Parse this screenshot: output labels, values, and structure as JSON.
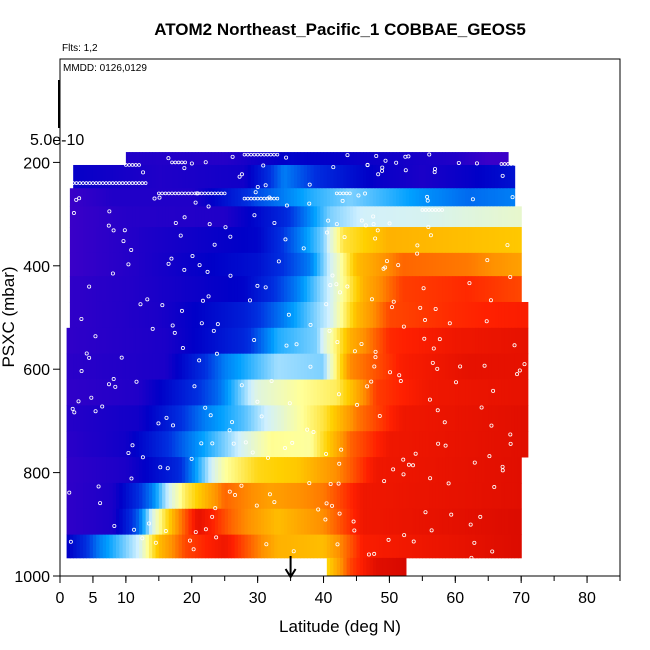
{
  "title": "ATOM2 Northeast_Pacific_1 COBBAE_GEOS5",
  "flights_label": "Flts: 1,2",
  "dates_label": "MMDD: 0126,0129",
  "scale_label": "5.0e-10",
  "chart_data": {
    "type": "heatmap",
    "title": "ATOM2 Northeast_Pacific_1 COBBAE_GEOS5",
    "xlabel": "Latitude (deg N)",
    "ylabel": "PSXC (mbar)",
    "xlim": [
      0,
      85
    ],
    "ylim": [
      1000,
      0
    ],
    "x_ticks": [
      0,
      5,
      10,
      20,
      30,
      40,
      50,
      60,
      70,
      80
    ],
    "y_ticks": [
      200,
      400,
      600,
      800,
      1000
    ],
    "flights": [
      1,
      2
    ],
    "dates": [
      "0126",
      "0129"
    ],
    "arrow_latitude": 35,
    "colorscale": [
      "#3a00c8",
      "#0000c8",
      "#0030e0",
      "#00a0ff",
      "#d0f0ff",
      "#ffff99",
      "#ffd000",
      "#ff9000",
      "#ff2000",
      "#c80000"
    ],
    "bands": [
      {
        "p_top": 180,
        "p_bot": 205,
        "lat_min": 10,
        "lat_max": 68,
        "stops": [
          [
            10,
            0.05
          ],
          [
            25,
            0.04
          ],
          [
            35,
            0.12
          ],
          [
            50,
            0.08
          ],
          [
            60,
            0.05
          ],
          [
            65,
            0.0
          ]
        ]
      },
      {
        "p_top": 205,
        "p_bot": 250,
        "lat_min": 2,
        "lat_max": 69,
        "stops": [
          [
            2,
            0.1
          ],
          [
            15,
            0.05
          ],
          [
            28,
            0.08
          ],
          [
            34,
            0.3
          ],
          [
            40,
            0.2
          ],
          [
            48,
            0.1
          ],
          [
            55,
            0.06
          ],
          [
            62,
            0.1
          ],
          [
            69,
            0.15
          ]
        ]
      },
      {
        "p_top": 250,
        "p_bot": 285,
        "lat_min": 1.5,
        "lat_max": 69,
        "stops": [
          [
            1.5,
            0.0
          ],
          [
            8,
            0.05
          ],
          [
            20,
            0.05
          ],
          [
            30,
            0.25
          ],
          [
            38,
            0.35
          ],
          [
            44,
            0.4
          ],
          [
            55,
            0.32
          ],
          [
            62,
            0.28
          ],
          [
            69,
            0.3
          ]
        ]
      },
      {
        "p_top": 285,
        "p_bot": 325,
        "lat_min": 1.5,
        "lat_max": 70,
        "stops": [
          [
            1.5,
            0.0
          ],
          [
            10,
            0.04
          ],
          [
            25,
            0.05
          ],
          [
            34,
            0.2
          ],
          [
            41,
            0.4
          ],
          [
            46,
            0.45
          ],
          [
            55,
            0.46
          ],
          [
            62,
            0.48
          ],
          [
            70,
            0.5
          ]
        ]
      },
      {
        "p_top": 325,
        "p_bot": 375,
        "lat_min": 1.5,
        "lat_max": 70,
        "stops": [
          [
            1.5,
            0.0
          ],
          [
            12,
            0.05
          ],
          [
            30,
            0.12
          ],
          [
            40,
            0.4
          ],
          [
            43,
            0.62
          ],
          [
            50,
            0.72
          ],
          [
            60,
            0.7
          ],
          [
            70,
            0.68
          ]
        ]
      },
      {
        "p_top": 375,
        "p_bot": 420,
        "lat_min": 1.5,
        "lat_max": 70,
        "stops": [
          [
            1.5,
            0.0
          ],
          [
            12,
            0.05
          ],
          [
            30,
            0.15
          ],
          [
            38,
            0.3
          ],
          [
            42,
            0.5
          ],
          [
            45,
            0.7
          ],
          [
            52,
            0.82
          ],
          [
            62,
            0.8
          ],
          [
            70,
            0.75
          ]
        ]
      },
      {
        "p_top": 420,
        "p_bot": 470,
        "lat_min": 1.5,
        "lat_max": 70,
        "stops": [
          [
            1.5,
            0.02
          ],
          [
            12,
            0.05
          ],
          [
            28,
            0.12
          ],
          [
            36,
            0.3
          ],
          [
            41,
            0.45
          ],
          [
            46,
            0.72
          ],
          [
            52,
            0.86
          ],
          [
            62,
            0.88
          ],
          [
            70,
            0.85
          ]
        ]
      },
      {
        "p_top": 470,
        "p_bot": 520,
        "lat_min": 1.5,
        "lat_max": 71,
        "stops": [
          [
            1.5,
            0.02
          ],
          [
            15,
            0.06
          ],
          [
            28,
            0.18
          ],
          [
            34,
            0.3
          ],
          [
            41,
            0.45
          ],
          [
            45,
            0.7
          ],
          [
            50,
            0.85
          ],
          [
            60,
            0.88
          ],
          [
            71,
            0.9
          ]
        ]
      },
      {
        "p_top": 520,
        "p_bot": 570,
        "lat_min": 1,
        "lat_max": 71,
        "stops": [
          [
            1,
            0.02
          ],
          [
            16,
            0.06
          ],
          [
            28,
            0.2
          ],
          [
            33,
            0.35
          ],
          [
            39,
            0.4
          ],
          [
            44,
            0.72
          ],
          [
            50,
            0.88
          ],
          [
            60,
            0.92
          ],
          [
            71,
            0.94
          ]
        ]
      },
      {
        "p_top": 570,
        "p_bot": 620,
        "lat_min": 1,
        "lat_max": 71,
        "stops": [
          [
            1,
            0.03
          ],
          [
            16,
            0.06
          ],
          [
            25,
            0.3
          ],
          [
            33,
            0.42
          ],
          [
            40,
            0.4
          ],
          [
            44,
            0.78
          ],
          [
            52,
            0.9
          ],
          [
            62,
            0.94
          ],
          [
            71,
            0.94
          ]
        ]
      },
      {
        "p_top": 620,
        "p_bot": 670,
        "lat_min": 1,
        "lat_max": 71,
        "stops": [
          [
            1,
            0.02
          ],
          [
            12,
            0.05
          ],
          [
            24,
            0.28
          ],
          [
            30,
            0.48
          ],
          [
            36,
            0.55
          ],
          [
            42,
            0.6
          ],
          [
            48,
            0.86
          ],
          [
            56,
            0.92
          ],
          [
            71,
            0.94
          ]
        ]
      },
      {
        "p_top": 670,
        "p_bot": 720,
        "lat_min": 1,
        "lat_max": 71,
        "stops": [
          [
            1,
            0.04
          ],
          [
            12,
            0.08
          ],
          [
            22,
            0.3
          ],
          [
            28,
            0.38
          ],
          [
            34,
            0.5
          ],
          [
            40,
            0.62
          ],
          [
            45,
            0.8
          ],
          [
            52,
            0.92
          ],
          [
            71,
            0.95
          ]
        ]
      },
      {
        "p_top": 720,
        "p_bot": 770,
        "lat_min": 1,
        "lat_max": 71,
        "stops": [
          [
            1,
            0.03
          ],
          [
            10,
            0.08
          ],
          [
            20,
            0.3
          ],
          [
            26,
            0.42
          ],
          [
            32,
            0.56
          ],
          [
            38,
            0.55
          ],
          [
            44,
            0.82
          ],
          [
            50,
            0.92
          ],
          [
            71,
            0.95
          ]
        ]
      },
      {
        "p_top": 770,
        "p_bot": 820,
        "lat_min": 1,
        "lat_max": 70,
        "stops": [
          [
            1,
            0.02
          ],
          [
            10,
            0.06
          ],
          [
            18,
            0.2
          ],
          [
            25,
            0.55
          ],
          [
            30,
            0.65
          ],
          [
            36,
            0.68
          ],
          [
            42,
            0.78
          ],
          [
            48,
            0.92
          ],
          [
            70,
            0.95
          ]
        ]
      },
      {
        "p_top": 820,
        "p_bot": 870,
        "lat_min": 1,
        "lat_max": 70,
        "stops": [
          [
            1,
            0.02
          ],
          [
            8,
            0.06
          ],
          [
            14,
            0.3
          ],
          [
            19,
            0.6
          ],
          [
            25,
            0.82
          ],
          [
            32,
            0.75
          ],
          [
            40,
            0.8
          ],
          [
            46,
            0.92
          ],
          [
            70,
            0.95
          ]
        ]
      },
      {
        "p_top": 870,
        "p_bot": 920,
        "lat_min": 1,
        "lat_max": 70,
        "stops": [
          [
            1,
            0.02
          ],
          [
            8,
            0.06
          ],
          [
            12,
            0.28
          ],
          [
            15,
            0.55
          ],
          [
            18,
            0.78
          ],
          [
            21,
            0.94
          ],
          [
            26,
            0.82
          ],
          [
            33,
            0.7
          ],
          [
            40,
            0.78
          ],
          [
            46,
            0.92
          ],
          [
            70,
            0.96
          ]
        ]
      },
      {
        "p_top": 920,
        "p_bot": 965,
        "lat_min": 1,
        "lat_max": 70,
        "stops": [
          [
            1,
            0.1
          ],
          [
            6,
            0.3
          ],
          [
            12,
            0.45
          ],
          [
            15,
            0.7
          ],
          [
            19,
            0.85
          ],
          [
            25,
            0.92
          ],
          [
            33,
            0.72
          ],
          [
            40,
            0.7
          ],
          [
            46,
            0.9
          ],
          [
            70,
            0.96
          ]
        ]
      },
      {
        "p_top": 965,
        "p_bot": 1000,
        "lat_min": 40.5,
        "lat_max": 52.5,
        "stops": [
          [
            40.5,
            0.65
          ],
          [
            44,
            0.85
          ],
          [
            48,
            0.95
          ],
          [
            52.5,
            0.97
          ]
        ]
      }
    ]
  }
}
